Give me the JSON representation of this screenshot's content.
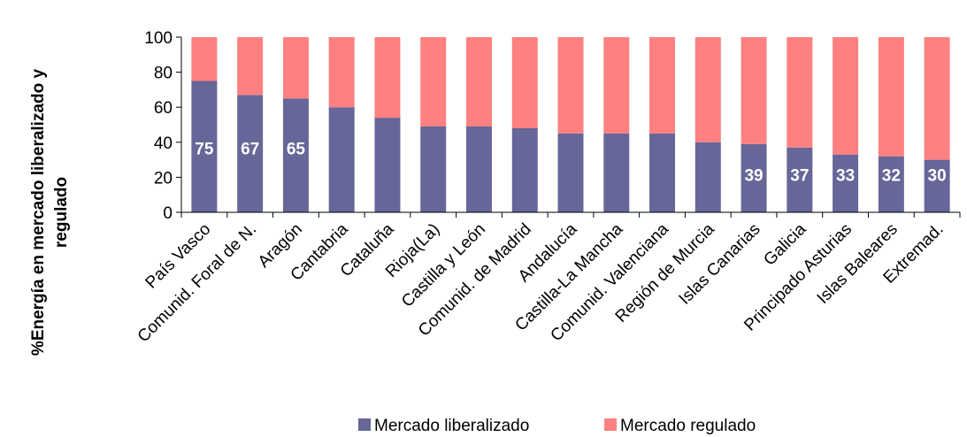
{
  "chart_data": {
    "type": "bar",
    "stacked": true,
    "categories": [
      "País Vasco",
      "Comunid. Foral de N.",
      "Aragón",
      "Cantabria",
      "Cataluña",
      "Rioja(La)",
      "Castilla y León",
      "Comunid. de Madrid",
      "Andalucía",
      "Castilla-La Mancha",
      "Comunid. Valenciana",
      "Región de Murcia",
      "Islas Canarias",
      "Galicia",
      "Principado Asturias",
      "Islas Baleares",
      "Extremad."
    ],
    "series": [
      {
        "name": "Mercado liberalizado",
        "color": "#666699",
        "values": [
          75,
          67,
          65,
          60,
          54,
          49,
          49,
          48,
          45,
          45,
          45,
          40,
          39,
          37,
          33,
          32,
          30
        ]
      },
      {
        "name": "Mercado regulado",
        "color": "#ff8080",
        "values": [
          25,
          33,
          35,
          40,
          46,
          51,
          51,
          52,
          55,
          55,
          55,
          60,
          61,
          63,
          67,
          68,
          70
        ]
      }
    ],
    "data_labels": [
      "75",
      "67",
      "65",
      "",
      "",
      "",
      "",
      "",
      "",
      "",
      "",
      "",
      "39",
      "37",
      "33",
      "32",
      "30"
    ],
    "ylim": [
      0,
      100
    ],
    "yticks": [
      "0",
      "20",
      "40",
      "60",
      "80",
      "100"
    ],
    "xlabel": "",
    "ylabel_lines": [
      "%Energía en mercado liberalizado y",
      "regulado"
    ],
    "grid": false,
    "legend_position": "bottom"
  }
}
